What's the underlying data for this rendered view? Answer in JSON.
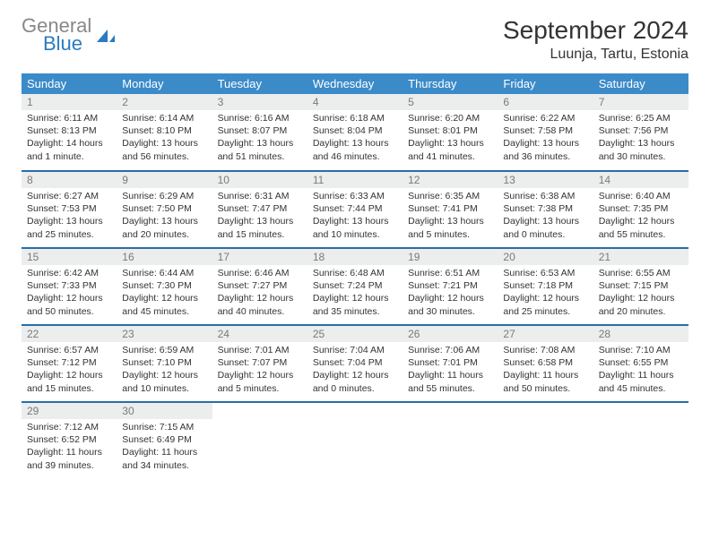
{
  "brand": {
    "gray": "General",
    "blue": "Blue"
  },
  "title": "September 2024",
  "location": "Luunja, Tartu, Estonia",
  "colors": {
    "header_bg": "#3b8bc9",
    "row_divider": "#2a6da8",
    "daynum_bg": "#eceded",
    "daynum_color": "#7a7a7a",
    "text": "#333333",
    "logo_gray": "#888888",
    "logo_blue": "#2a7bbf"
  },
  "weekdays": [
    "Sunday",
    "Monday",
    "Tuesday",
    "Wednesday",
    "Thursday",
    "Friday",
    "Saturday"
  ],
  "weeks": [
    [
      {
        "n": "1",
        "sr": "6:11 AM",
        "ss": "8:13 PM",
        "dl": "14 hours and 1 minute."
      },
      {
        "n": "2",
        "sr": "6:14 AM",
        "ss": "8:10 PM",
        "dl": "13 hours and 56 minutes."
      },
      {
        "n": "3",
        "sr": "6:16 AM",
        "ss": "8:07 PM",
        "dl": "13 hours and 51 minutes."
      },
      {
        "n": "4",
        "sr": "6:18 AM",
        "ss": "8:04 PM",
        "dl": "13 hours and 46 minutes."
      },
      {
        "n": "5",
        "sr": "6:20 AM",
        "ss": "8:01 PM",
        "dl": "13 hours and 41 minutes."
      },
      {
        "n": "6",
        "sr": "6:22 AM",
        "ss": "7:58 PM",
        "dl": "13 hours and 36 minutes."
      },
      {
        "n": "7",
        "sr": "6:25 AM",
        "ss": "7:56 PM",
        "dl": "13 hours and 30 minutes."
      }
    ],
    [
      {
        "n": "8",
        "sr": "6:27 AM",
        "ss": "7:53 PM",
        "dl": "13 hours and 25 minutes."
      },
      {
        "n": "9",
        "sr": "6:29 AM",
        "ss": "7:50 PM",
        "dl": "13 hours and 20 minutes."
      },
      {
        "n": "10",
        "sr": "6:31 AM",
        "ss": "7:47 PM",
        "dl": "13 hours and 15 minutes."
      },
      {
        "n": "11",
        "sr": "6:33 AM",
        "ss": "7:44 PM",
        "dl": "13 hours and 10 minutes."
      },
      {
        "n": "12",
        "sr": "6:35 AM",
        "ss": "7:41 PM",
        "dl": "13 hours and 5 minutes."
      },
      {
        "n": "13",
        "sr": "6:38 AM",
        "ss": "7:38 PM",
        "dl": "13 hours and 0 minutes."
      },
      {
        "n": "14",
        "sr": "6:40 AM",
        "ss": "7:35 PM",
        "dl": "12 hours and 55 minutes."
      }
    ],
    [
      {
        "n": "15",
        "sr": "6:42 AM",
        "ss": "7:33 PM",
        "dl": "12 hours and 50 minutes."
      },
      {
        "n": "16",
        "sr": "6:44 AM",
        "ss": "7:30 PM",
        "dl": "12 hours and 45 minutes."
      },
      {
        "n": "17",
        "sr": "6:46 AM",
        "ss": "7:27 PM",
        "dl": "12 hours and 40 minutes."
      },
      {
        "n": "18",
        "sr": "6:48 AM",
        "ss": "7:24 PM",
        "dl": "12 hours and 35 minutes."
      },
      {
        "n": "19",
        "sr": "6:51 AM",
        "ss": "7:21 PM",
        "dl": "12 hours and 30 minutes."
      },
      {
        "n": "20",
        "sr": "6:53 AM",
        "ss": "7:18 PM",
        "dl": "12 hours and 25 minutes."
      },
      {
        "n": "21",
        "sr": "6:55 AM",
        "ss": "7:15 PM",
        "dl": "12 hours and 20 minutes."
      }
    ],
    [
      {
        "n": "22",
        "sr": "6:57 AM",
        "ss": "7:12 PM",
        "dl": "12 hours and 15 minutes."
      },
      {
        "n": "23",
        "sr": "6:59 AM",
        "ss": "7:10 PM",
        "dl": "12 hours and 10 minutes."
      },
      {
        "n": "24",
        "sr": "7:01 AM",
        "ss": "7:07 PM",
        "dl": "12 hours and 5 minutes."
      },
      {
        "n": "25",
        "sr": "7:04 AM",
        "ss": "7:04 PM",
        "dl": "12 hours and 0 minutes."
      },
      {
        "n": "26",
        "sr": "7:06 AM",
        "ss": "7:01 PM",
        "dl": "11 hours and 55 minutes."
      },
      {
        "n": "27",
        "sr": "7:08 AM",
        "ss": "6:58 PM",
        "dl": "11 hours and 50 minutes."
      },
      {
        "n": "28",
        "sr": "7:10 AM",
        "ss": "6:55 PM",
        "dl": "11 hours and 45 minutes."
      }
    ],
    [
      {
        "n": "29",
        "sr": "7:12 AM",
        "ss": "6:52 PM",
        "dl": "11 hours and 39 minutes."
      },
      {
        "n": "30",
        "sr": "7:15 AM",
        "ss": "6:49 PM",
        "dl": "11 hours and 34 minutes."
      },
      null,
      null,
      null,
      null,
      null
    ]
  ]
}
